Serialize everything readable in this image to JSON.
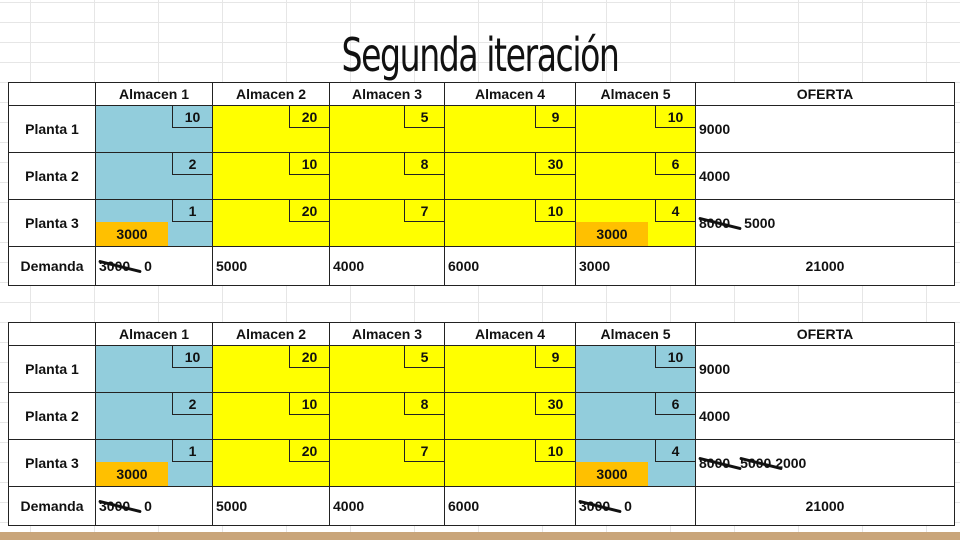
{
  "title": "Segunda iteración",
  "tables": [
    {
      "headers": [
        "",
        "Almacen 1",
        "Almacen 2",
        "Almacen 3",
        "Almacen 4",
        "Almacen 5",
        "OFERTA"
      ],
      "rows": [
        {
          "label": "Planta 1",
          "cells": [
            {
              "cost": "10",
              "alloc": "",
              "color": "blue"
            },
            {
              "cost": "20",
              "alloc": "",
              "color": "yellow"
            },
            {
              "cost": "5",
              "alloc": "",
              "color": "yellow"
            },
            {
              "cost": "9",
              "alloc": "",
              "color": "yellow"
            },
            {
              "cost": "10",
              "alloc": "",
              "color": "yellow"
            }
          ],
          "oferta": [
            {
              "text": "9000",
              "struck": false
            }
          ]
        },
        {
          "label": "Planta 2",
          "cells": [
            {
              "cost": "2",
              "alloc": "",
              "color": "blue"
            },
            {
              "cost": "10",
              "alloc": "",
              "color": "yellow"
            },
            {
              "cost": "8",
              "alloc": "",
              "color": "yellow"
            },
            {
              "cost": "30",
              "alloc": "",
              "color": "yellow"
            },
            {
              "cost": "6",
              "alloc": "",
              "color": "yellow"
            }
          ],
          "oferta": [
            {
              "text": "4000",
              "struck": false
            }
          ]
        },
        {
          "label": "Planta 3",
          "cells": [
            {
              "cost": "1",
              "alloc": "3000",
              "color": "blue"
            },
            {
              "cost": "20",
              "alloc": "",
              "color": "yellow"
            },
            {
              "cost": "7",
              "alloc": "",
              "color": "yellow"
            },
            {
              "cost": "10",
              "alloc": "",
              "color": "yellow"
            },
            {
              "cost": "4",
              "alloc": "3000",
              "color": "yellow"
            }
          ],
          "oferta": [
            {
              "text": "8000",
              "struck": true
            },
            {
              "text": "5000",
              "struck": false
            }
          ]
        }
      ],
      "demanda_label": "Demanda",
      "demanda": [
        [
          {
            "text": "3000",
            "struck": true
          },
          {
            "text": "0",
            "struck": false
          }
        ],
        [
          {
            "text": "5000",
            "struck": false
          }
        ],
        [
          {
            "text": "4000",
            "struck": false
          }
        ],
        [
          {
            "text": "6000",
            "struck": false
          }
        ],
        [
          {
            "text": "3000",
            "struck": false
          }
        ]
      ],
      "total": "21000"
    },
    {
      "headers": [
        "",
        "Almacen 1",
        "Almacen 2",
        "Almacen 3",
        "Almacen 4",
        "Almacen 5",
        "OFERTA"
      ],
      "rows": [
        {
          "label": "Planta 1",
          "cells": [
            {
              "cost": "10",
              "alloc": "",
              "color": "blue"
            },
            {
              "cost": "20",
              "alloc": "",
              "color": "yellow"
            },
            {
              "cost": "5",
              "alloc": "",
              "color": "yellow"
            },
            {
              "cost": "9",
              "alloc": "",
              "color": "yellow"
            },
            {
              "cost": "10",
              "alloc": "",
              "color": "blue"
            }
          ],
          "oferta": [
            {
              "text": "9000",
              "struck": false
            }
          ]
        },
        {
          "label": "Planta 2",
          "cells": [
            {
              "cost": "2",
              "alloc": "",
              "color": "blue"
            },
            {
              "cost": "10",
              "alloc": "",
              "color": "yellow"
            },
            {
              "cost": "8",
              "alloc": "",
              "color": "yellow"
            },
            {
              "cost": "30",
              "alloc": "",
              "color": "yellow"
            },
            {
              "cost": "6",
              "alloc": "",
              "color": "blue"
            }
          ],
          "oferta": [
            {
              "text": "4000",
              "struck": false
            }
          ]
        },
        {
          "label": "Planta 3",
          "cells": [
            {
              "cost": "1",
              "alloc": "3000",
              "color": "blue"
            },
            {
              "cost": "20",
              "alloc": "",
              "color": "yellow"
            },
            {
              "cost": "7",
              "alloc": "",
              "color": "yellow"
            },
            {
              "cost": "10",
              "alloc": "",
              "color": "yellow"
            },
            {
              "cost": "4",
              "alloc": "3000",
              "color": "blue"
            }
          ],
          "oferta": [
            {
              "text": "8000",
              "struck": true
            },
            {
              "text": "5000",
              "struck": true
            },
            {
              "text": "2000",
              "struck": false
            }
          ]
        }
      ],
      "demanda_label": "Demanda",
      "demanda": [
        [
          {
            "text": "3000",
            "struck": true
          },
          {
            "text": "0",
            "struck": false
          }
        ],
        [
          {
            "text": "5000",
            "struck": false
          }
        ],
        [
          {
            "text": "4000",
            "struck": false
          }
        ],
        [
          {
            "text": "6000",
            "struck": false
          }
        ],
        [
          {
            "text": "3000",
            "struck": true
          },
          {
            "text": "0",
            "struck": false
          }
        ]
      ],
      "total": "21000"
    }
  ],
  "colors": {
    "blue": "#92cddc",
    "yellow": "#ffff00",
    "allocation": "#ffc000",
    "accent_bar": "#c9a57a"
  }
}
